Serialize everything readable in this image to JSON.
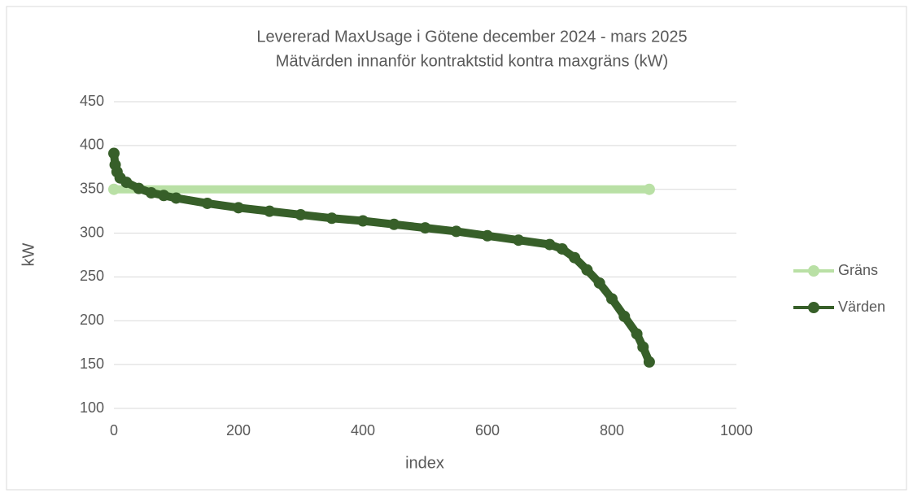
{
  "chart_data": {
    "type": "scatter-line",
    "title": "Levererad MaxUsage i Götene december 2024 - mars 2025",
    "subtitle": "Mätvärden innanför kontraktstid kontra maxgräns (kW)",
    "x_label": "index",
    "y_label": "kW",
    "xlim": [
      0,
      1000
    ],
    "xticks": [
      0,
      200,
      400,
      600,
      800,
      1000
    ],
    "ylim": [
      100,
      450
    ],
    "yticks": [
      100,
      150,
      200,
      250,
      300,
      350,
      400,
      450
    ],
    "grid": true,
    "legend": "right",
    "series": [
      {
        "name": "Gräns",
        "color": "#b9e0a5",
        "x": [
          0,
          860
        ],
        "values": [
          350,
          350
        ]
      },
      {
        "name": "Värden",
        "color": "#375f29",
        "x": [
          0,
          2,
          5,
          10,
          20,
          40,
          60,
          80,
          100,
          150,
          200,
          250,
          300,
          350,
          400,
          450,
          500,
          550,
          600,
          650,
          700,
          720,
          740,
          760,
          780,
          800,
          820,
          840,
          850,
          860
        ],
        "values": [
          391,
          378,
          370,
          363,
          358,
          351,
          346,
          343,
          340,
          334,
          329,
          325,
          321,
          317,
          314,
          310,
          306,
          302,
          297,
          292,
          287,
          282,
          272,
          258,
          243,
          225,
          205,
          185,
          170,
          153
        ]
      }
    ]
  }
}
